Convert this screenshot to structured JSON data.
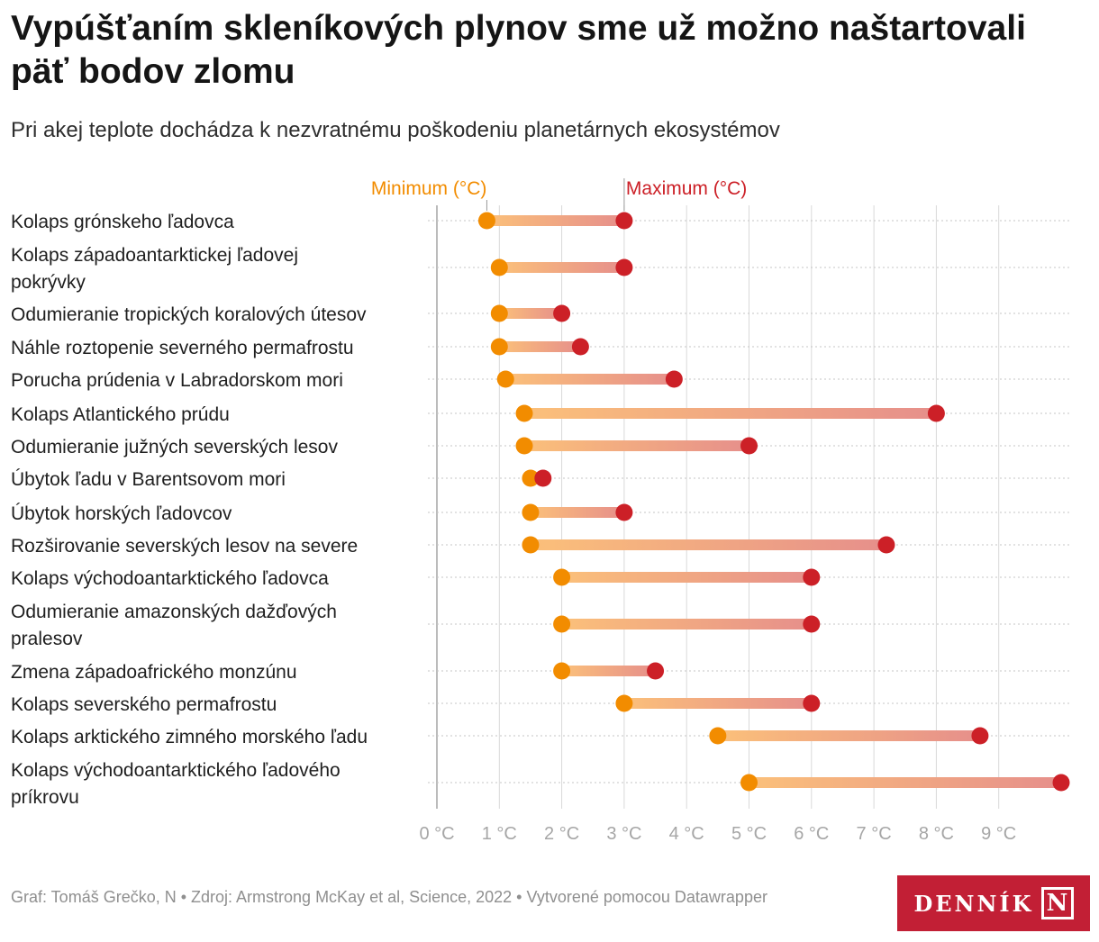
{
  "title": "Vypúšťaním skleníkových plynov sme už možno naštartovali päť bodov zlomu",
  "subtitle": "Pri akej teplote dochádza k nezvratnému poškodeniu planetárnych ekosystémov",
  "chart_data": {
    "type": "dumbbell",
    "legend": {
      "min_label": "Minimum (°C)",
      "max_label": "Maximum (°C)"
    },
    "colors": {
      "min": "#f28c00",
      "max": "#cc2027",
      "grid": "#d9d9d9",
      "tick": "#a6a6a6",
      "axis_zero": "#bbbbbb"
    },
    "xlim": [
      0,
      10
    ],
    "ticks": [
      0,
      1,
      2,
      3,
      4,
      5,
      6,
      7,
      8,
      9
    ],
    "tick_labels": [
      "0 °C",
      "1 °C",
      "2 °C",
      "3 °C",
      "4 °C",
      "5 °C",
      "6 °C",
      "7 °C",
      "8 °C",
      "9 °C"
    ],
    "rows": [
      {
        "label": [
          "Kolaps grónskeho ľadovca"
        ],
        "min": 0.8,
        "max": 3.0
      },
      {
        "label": [
          "Kolaps západoantarktickej ľadovej",
          "pokrývky"
        ],
        "min": 1.0,
        "max": 3.0
      },
      {
        "label": [
          "Odumieranie tropických koralových útesov"
        ],
        "min": 1.0,
        "max": 2.0
      },
      {
        "label": [
          "Náhle roztopenie severného permafrostu"
        ],
        "min": 1.0,
        "max": 2.3
      },
      {
        "label": [
          "Porucha prúdenia v Labradorskom mori"
        ],
        "min": 1.1,
        "max": 3.8
      },
      {
        "label": [
          "Kolaps Atlantického prúdu"
        ],
        "min": 1.4,
        "max": 8.0
      },
      {
        "label": [
          "Odumieranie južných severských lesov"
        ],
        "min": 1.4,
        "max": 5.0
      },
      {
        "label": [
          "Úbytok ľadu v Barentsovom mori"
        ],
        "min": 1.5,
        "max": 1.7
      },
      {
        "label": [
          "Úbytok horských ľadovcov"
        ],
        "min": 1.5,
        "max": 3.0
      },
      {
        "label": [
          "Rozširovanie severských lesov na severe"
        ],
        "min": 1.5,
        "max": 7.2
      },
      {
        "label": [
          "Kolaps východoantarktického ľadovca"
        ],
        "min": 2.0,
        "max": 6.0
      },
      {
        "label": [
          "Odumieranie amazonských dažďových",
          "pralesov"
        ],
        "min": 2.0,
        "max": 6.0
      },
      {
        "label": [
          "Zmena západoafrického monzúnu"
        ],
        "min": 2.0,
        "max": 3.5
      },
      {
        "label": [
          "Kolaps severského permafrostu"
        ],
        "min": 3.0,
        "max": 6.0
      },
      {
        "label": [
          "Kolaps arktického zimného morského ľadu"
        ],
        "min": 4.5,
        "max": 8.7
      },
      {
        "label": [
          "Kolaps východoantarktického ľadového",
          "príkrovu"
        ],
        "min": 5.0,
        "max": 10.0
      }
    ]
  },
  "footer": "Graf: Tomáš Grečko, N • Zdroj: Armstrong McKay et al, Science, 2022 • Vytvorené pomocou Datawrapper",
  "logo": {
    "word": "DENNÍK",
    "letter": "N"
  }
}
